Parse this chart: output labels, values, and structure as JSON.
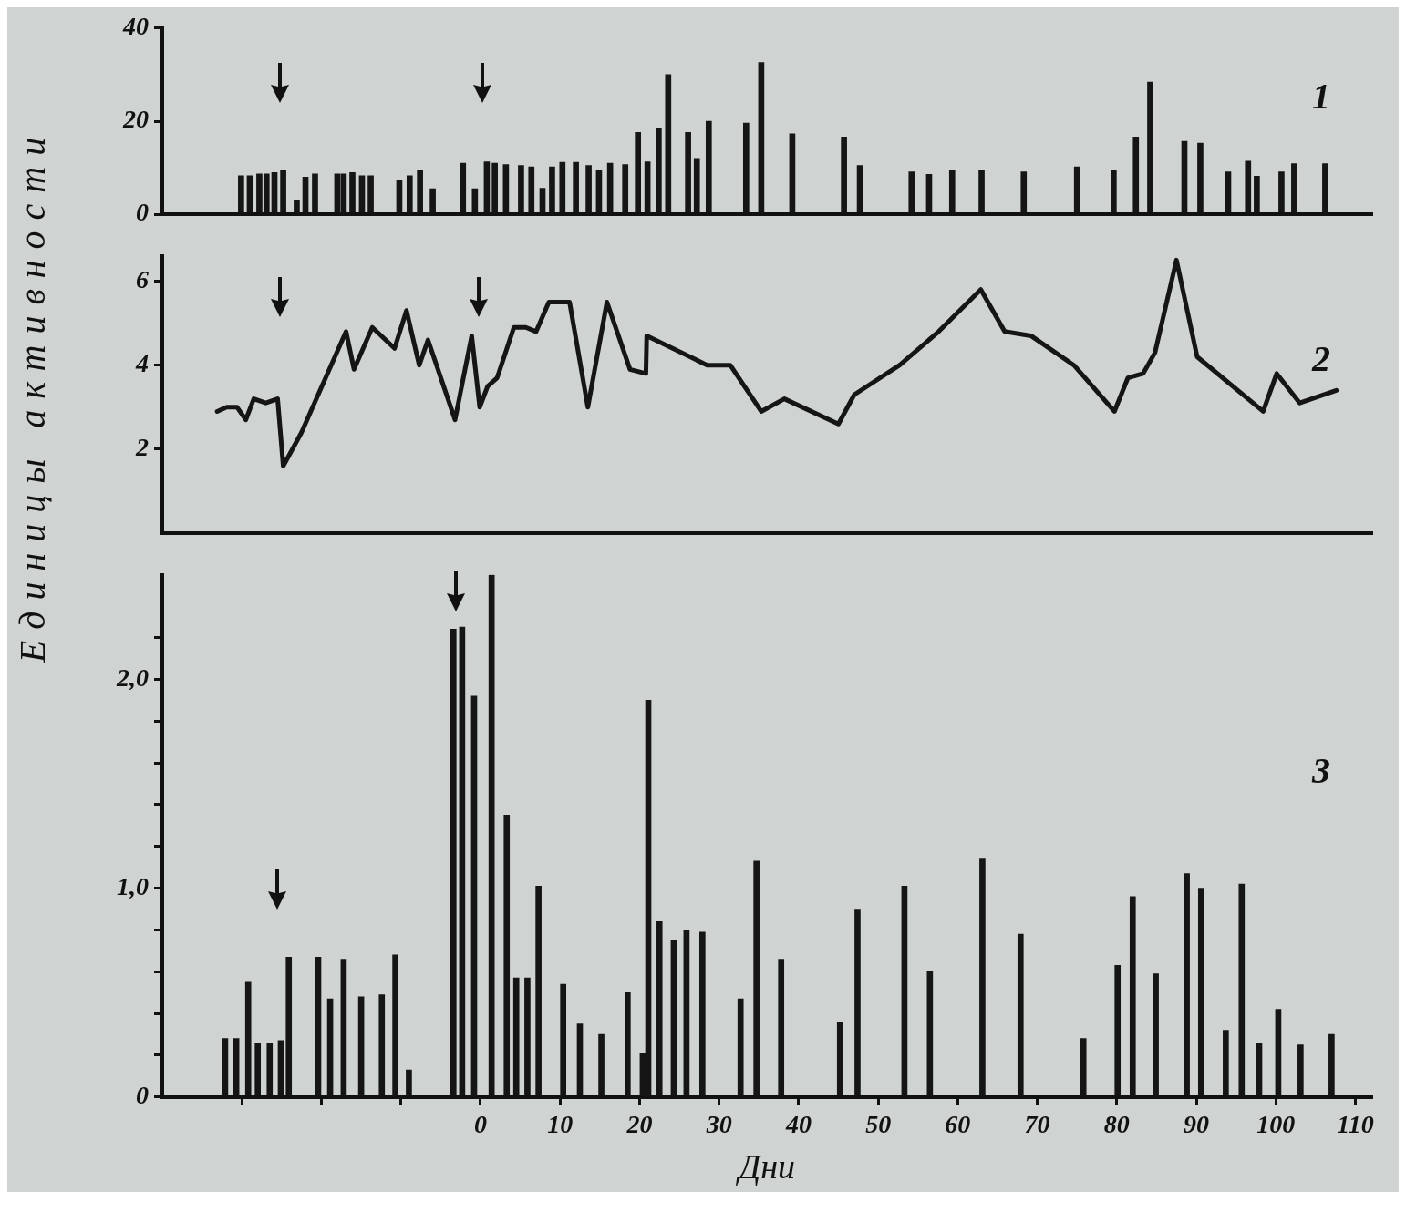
{
  "chart_data": [
    {
      "type": "bar",
      "color": "#151515",
      "xlim": [
        -40,
        112
      ],
      "ylim": [
        0,
        40
      ],
      "yticks": [
        0,
        20,
        40
      ],
      "tick_labels": "y",
      "annotations": [
        "1"
      ],
      "x": [
        -30.1,
        -29,
        -27.8,
        -26.9,
        -25.9,
        -24.8,
        -23.1,
        -22,
        -20.8,
        -18,
        -17.2,
        -16.1,
        -14.9,
        -13.8,
        -10.2,
        -8.9,
        -7.6,
        -6,
        -2.2,
        -0.7,
        0.8,
        1.8,
        3.2,
        5.1,
        6.4,
        7.8,
        9,
        10.3,
        12,
        13.6,
        14.9,
        16.3,
        18.2,
        19.8,
        21,
        22.4,
        23.6,
        26.1,
        27.2,
        28.7,
        33.4,
        35.3,
        39.2,
        45.7,
        47.7,
        54.2,
        56.4,
        59.3,
        63,
        68.3,
        75,
        79.6,
        82.4,
        84.2,
        88.5,
        90.5,
        94,
        96.5,
        97.6,
        100.7,
        102.3,
        106.2
      ],
      "values": [
        8.3,
        8.3,
        8.7,
        8.7,
        9,
        9.5,
        3,
        8,
        8.7,
        8.7,
        8.7,
        9,
        8.3,
        8.3,
        7.4,
        8.3,
        9.5,
        5.5,
        11,
        5.5,
        11.3,
        11,
        10.7,
        10.5,
        10.2,
        5.6,
        10.2,
        11.2,
        11.2,
        10.5,
        9.5,
        11,
        10.7,
        17.6,
        11.3,
        18.4,
        30,
        17.6,
        12,
        20,
        19.6,
        32.6,
        17.3,
        16.6,
        10.5,
        9.1,
        8.6,
        9.4,
        9.4,
        9.1,
        10.2,
        9.4,
        16.6,
        28.4,
        15.7,
        15.3,
        9.1,
        11.4,
        8.2,
        9.1,
        10.9,
        10.9
      ]
    },
    {
      "type": "line",
      "color": "#151515",
      "xlim": [
        -40,
        112
      ],
      "ylim": [
        0,
        6.6
      ],
      "yticks": [
        2,
        4,
        6
      ],
      "tick_labels": "y",
      "ylabel": "Единицы активности",
      "annotations": [
        "2"
      ],
      "x": [
        -33.1,
        -31.9,
        -30.6,
        -29.5,
        -28.5,
        -27,
        -25.5,
        -24.8,
        -22.5,
        -16.9,
        -15.9,
        -13.6,
        -10.8,
        -9.3,
        -7.7,
        -6.6,
        -3.2,
        -1.1,
        -0.1,
        0.9,
        2.1,
        4.2,
        5.7,
        7,
        8.6,
        11.2,
        13.5,
        15.9,
        18.8,
        20.8,
        20.9,
        28.5,
        31.4,
        35.3,
        38.2,
        45,
        47,
        52.7,
        57.6,
        62.9,
        65.9,
        69.2,
        74.6,
        79.7,
        81.4,
        83.3,
        84.8,
        87.5,
        90.1,
        98.4,
        100.1,
        103,
        107.6
      ],
      "values": [
        2.9,
        3,
        3,
        2.7,
        3.2,
        3.1,
        3.2,
        1.6,
        2.4,
        4.8,
        3.9,
        4.9,
        4.4,
        5.3,
        4,
        4.6,
        2.7,
        4.7,
        3,
        3.5,
        3.7,
        4.9,
        4.9,
        4.8,
        5.5,
        5.5,
        3,
        5.5,
        3.9,
        3.8,
        4.7,
        4,
        4,
        2.9,
        3.2,
        2.6,
        3.3,
        4,
        4.8,
        5.8,
        4.8,
        4.7,
        4,
        2.9,
        3.7,
        3.8,
        4.3,
        6.5,
        4.2,
        2.9,
        3.8,
        3.1,
        3.4
      ]
    },
    {
      "type": "bar",
      "color": "#151515",
      "xlim": [
        -40,
        112
      ],
      "ylim": [
        0,
        2.5
      ],
      "xlabel": "Дни",
      "xticks": [
        {
          "value": -30,
          "label": null
        },
        {
          "value": -20,
          "label": null
        },
        {
          "value": -10,
          "label": null
        },
        0,
        10,
        20,
        30,
        40,
        50,
        60,
        70,
        80,
        90,
        100,
        110
      ],
      "yticks": [
        0,
        {
          "value": 0.2,
          "label": null
        },
        {
          "value": 0.4,
          "label": null
        },
        {
          "value": 0.6,
          "label": null
        },
        {
          "value": 0.8,
          "label": null
        },
        {
          "value": 1,
          "label": "1,0"
        },
        {
          "value": 1.2,
          "label": null
        },
        {
          "value": 1.4,
          "label": null
        },
        {
          "value": 1.6,
          "label": null
        },
        {
          "value": 1.8,
          "label": null
        },
        {
          "value": 2,
          "label": "2,0"
        },
        {
          "value": 2.2,
          "label": null
        }
      ],
      "annotations": [
        "3"
      ],
      "x": [
        -32.1,
        -30.7,
        -29.2,
        -28,
        -26.5,
        -25.1,
        -24.1,
        -20.4,
        -18.9,
        -17.2,
        -15,
        -12.4,
        -10.7,
        -9,
        -3.4,
        -2.3,
        -0.8,
        1.4,
        3.3,
        4.5,
        5.9,
        7.3,
        10.4,
        12.5,
        15.2,
        18.5,
        20.4,
        21.1,
        22.5,
        24.3,
        25.9,
        27.9,
        32.7,
        34.7,
        37.8,
        45.2,
        47.4,
        53.3,
        56.5,
        63.1,
        67.9,
        75.8,
        80.1,
        82,
        84.9,
        88.8,
        90.6,
        93.7,
        95.7,
        97.9,
        100.3,
        103.1,
        107
      ],
      "values": [
        0.28,
        0.28,
        0.55,
        0.26,
        0.26,
        0.27,
        0.67,
        0.67,
        0.47,
        0.66,
        0.48,
        0.49,
        0.68,
        0.13,
        2.24,
        2.25,
        1.92,
        2.5,
        1.35,
        0.57,
        0.57,
        1.01,
        0.54,
        0.35,
        0.3,
        0.5,
        0.21,
        1.9,
        0.84,
        0.75,
        0.8,
        0.79,
        0.47,
        1.13,
        0.66,
        0.36,
        0.9,
        1.01,
        0.6,
        1.14,
        0.78,
        0.28,
        0.63,
        0.96,
        0.59,
        1.07,
        1,
        0.32,
        1.02,
        0.26,
        0.42,
        0.25,
        0.3
      ]
    }
  ]
}
